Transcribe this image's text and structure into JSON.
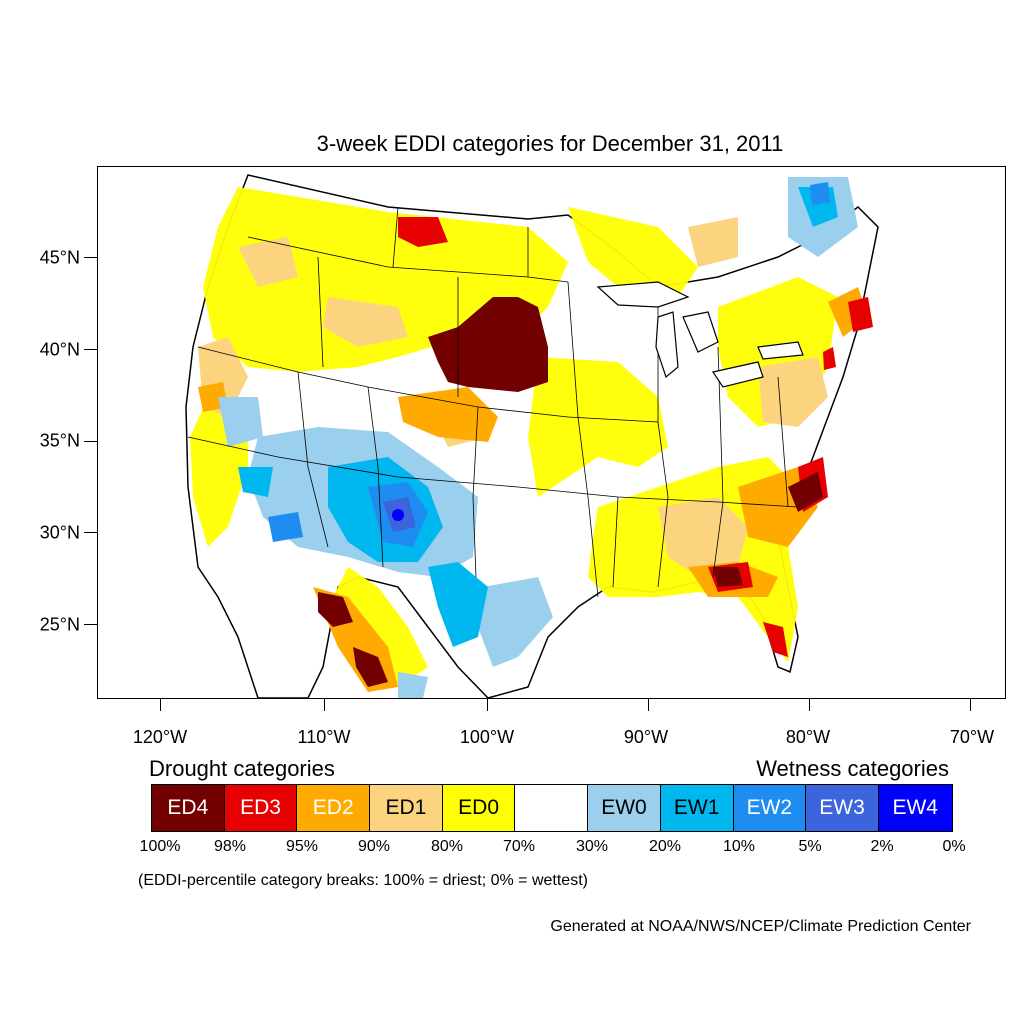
{
  "title": "3-week EDDI categories for December 31, 2011",
  "map": {
    "lat_labels": [
      "45°N",
      "40°N",
      "35°N",
      "30°N",
      "25°N"
    ],
    "lon_labels": [
      "120°W",
      "110°W",
      "100°W",
      "90°W",
      "80°W",
      "70°W"
    ],
    "icons": [
      "us-states-outline",
      "eddi-category-shading"
    ]
  },
  "legend": {
    "drought_heading": "Drought categories",
    "wetness_heading": "Wetness categories",
    "categories": [
      {
        "label": "ED4",
        "color": "#730000",
        "text_color": "#ffffff"
      },
      {
        "label": "ED3",
        "color": "#e60000",
        "text_color": "#ffffff"
      },
      {
        "label": "ED2",
        "color": "#ffaa00",
        "text_color": "#ffffff"
      },
      {
        "label": "ED1",
        "color": "#fcd37f",
        "text_color": "#000000"
      },
      {
        "label": "ED0",
        "color": "#ffff00",
        "text_color": "#000000"
      },
      {
        "label": "",
        "color": "#ffffff",
        "text_color": "#000000"
      },
      {
        "label": "EW0",
        "color": "#9bcfee",
        "text_color": "#000000"
      },
      {
        "label": "EW1",
        "color": "#00b7f0",
        "text_color": "#000000"
      },
      {
        "label": "EW2",
        "color": "#1e8cf0",
        "text_color": "#ffffff"
      },
      {
        "label": "EW3",
        "color": "#3c64dc",
        "text_color": "#ffffff"
      },
      {
        "label": "EW4",
        "color": "#0000ff",
        "text_color": "#ffffff"
      }
    ],
    "percent_breaks": [
      "100%",
      "98%",
      "95%",
      "90%",
      "80%",
      "70%",
      "30%",
      "20%",
      "10%",
      "5%",
      "2%",
      "0%"
    ]
  },
  "breaks_note": "(EDDI-percentile category breaks: 100% = driest; 0% = wettest)",
  "credit": "Generated at NOAA/NWS/NCEP/Climate Prediction Center"
}
